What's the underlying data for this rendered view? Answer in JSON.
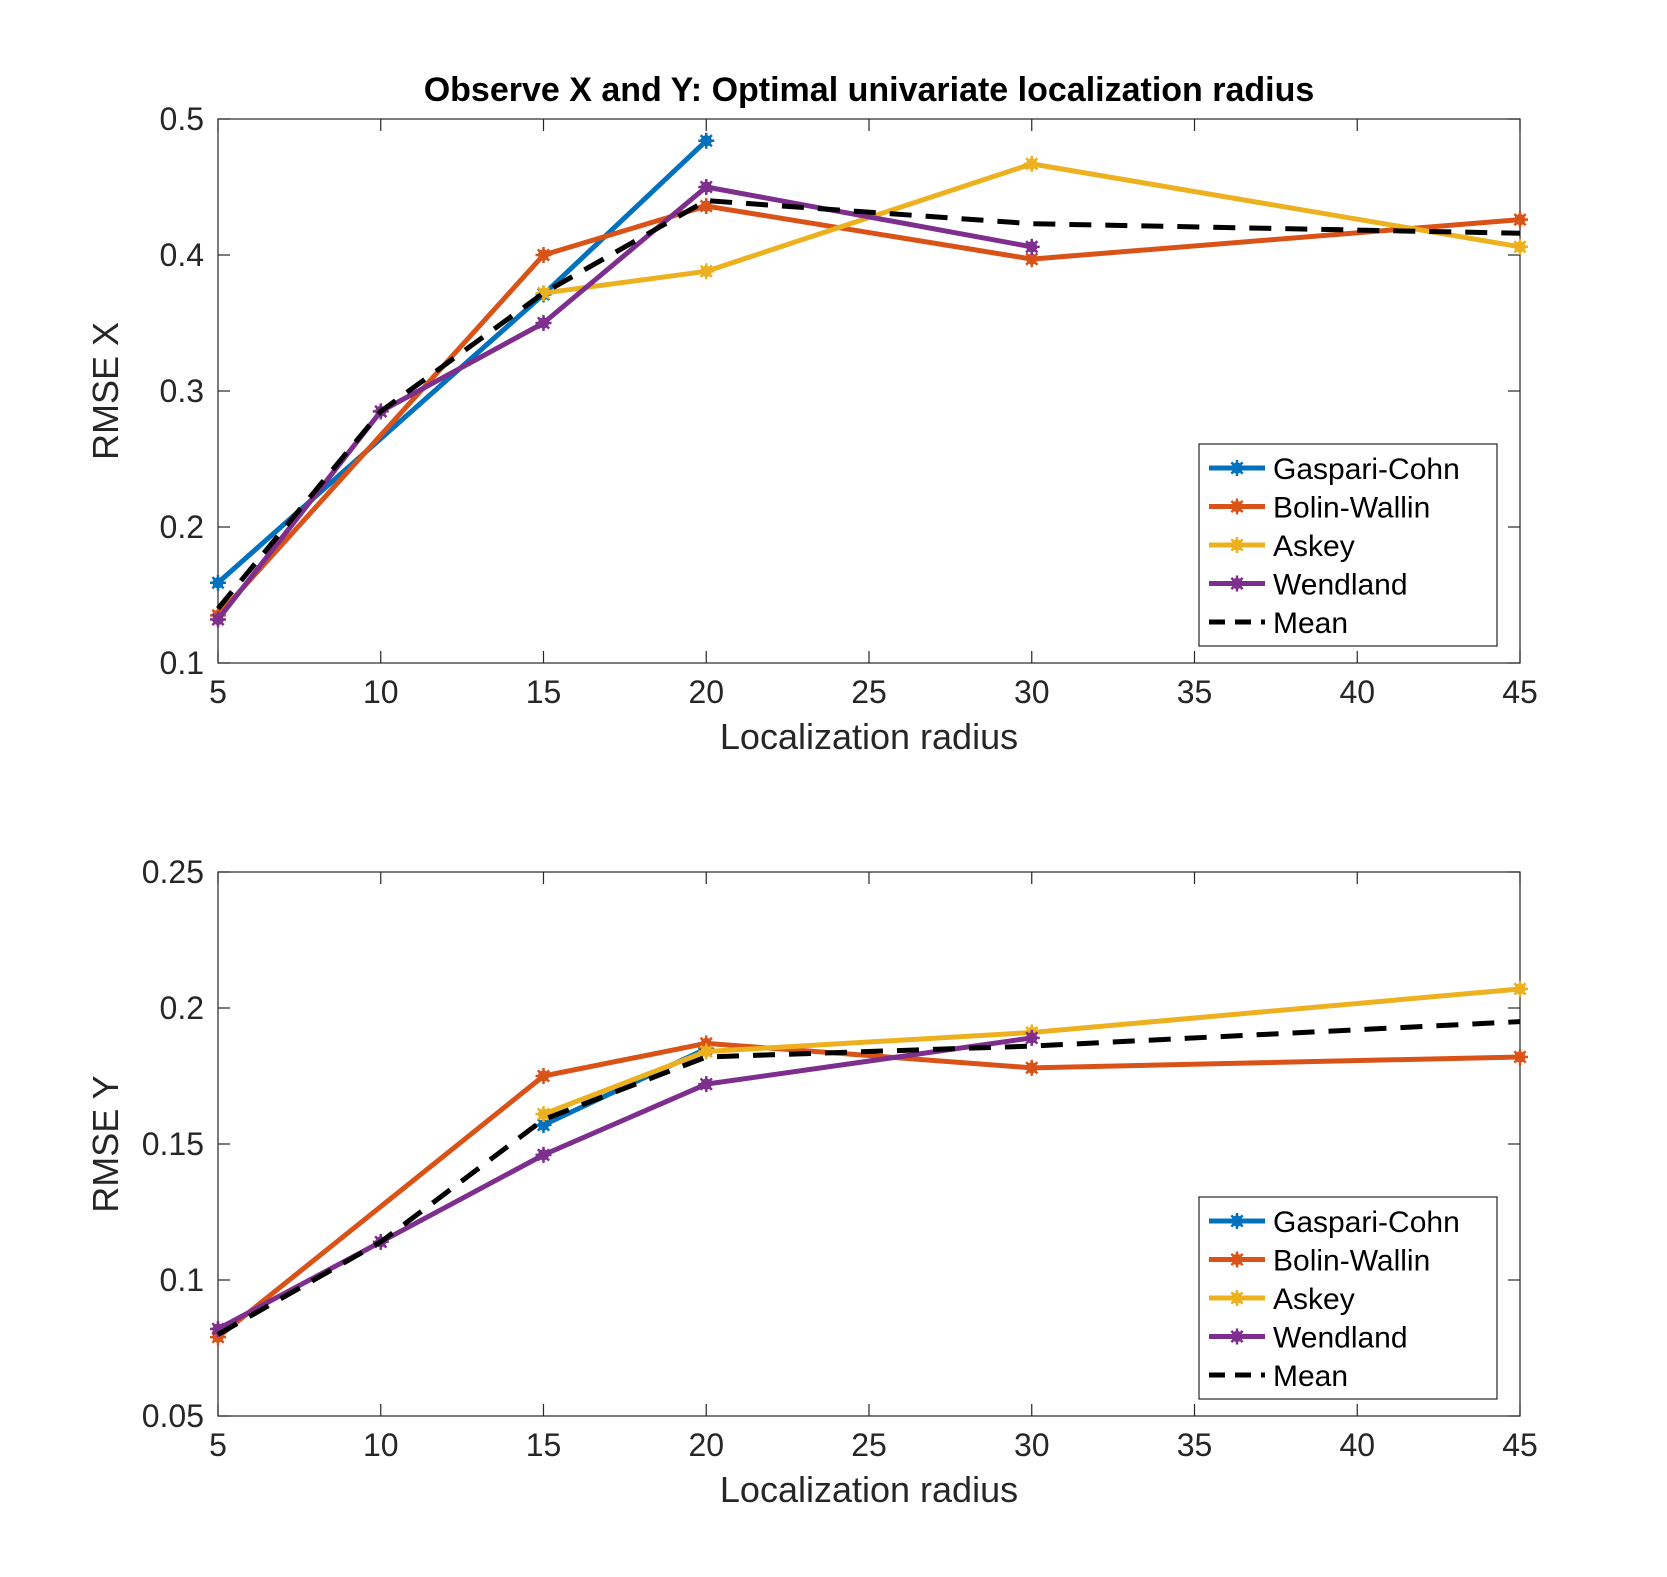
{
  "chart_data": [
    {
      "type": "line",
      "title": "Observe X and Y: Optimal univariate localization radius",
      "xlabel": "Localization radius",
      "ylabel": "RMSE X",
      "xlim": [
        5,
        45
      ],
      "ylim": [
        0.1,
        0.5
      ],
      "xticks": [
        "5",
        "10",
        "15",
        "20",
        "25",
        "30",
        "35",
        "40",
        "45"
      ],
      "yticks": [
        "0.1",
        "0.2",
        "0.3",
        "0.4",
        "0.5"
      ],
      "grid": false,
      "legend_position": "bottom-right",
      "series": [
        {
          "name": "Gaspari-Cohn",
          "color": "#0072BD",
          "line": "solid",
          "marker": "asterisk",
          "points": [
            [
              5,
              0.159
            ],
            [
              15,
              0.371
            ],
            [
              20,
              0.484
            ]
          ]
        },
        {
          "name": "Bolin-Wallin",
          "color": "#D95319",
          "line": "solid",
          "marker": "asterisk",
          "points": [
            [
              5,
              0.135
            ],
            [
              15,
              0.4
            ],
            [
              20,
              0.436
            ],
            [
              30,
              0.397
            ],
            [
              45,
              0.426
            ]
          ]
        },
        {
          "name": "Askey",
          "color": "#EDB120",
          "line": "solid",
          "marker": "asterisk",
          "points": [
            [
              15,
              0.372
            ],
            [
              20,
              0.388
            ],
            [
              30,
              0.467
            ],
            [
              45,
              0.406
            ]
          ]
        },
        {
          "name": "Wendland",
          "color": "#7E2F8E",
          "line": "solid",
          "marker": "asterisk",
          "points": [
            [
              5,
              0.132
            ],
            [
              10,
              0.285
            ],
            [
              15,
              0.35
            ],
            [
              20,
              0.45
            ],
            [
              30,
              0.406
            ]
          ]
        },
        {
          "name": "Mean",
          "color": "#000000",
          "line": "dashed",
          "marker": "none",
          "points": [
            [
              5,
              0.14
            ],
            [
              10,
              0.285
            ],
            [
              15,
              0.372
            ],
            [
              20,
              0.44
            ],
            [
              30,
              0.423
            ],
            [
              45,
              0.416
            ]
          ]
        }
      ]
    },
    {
      "type": "line",
      "title": "",
      "xlabel": "Localization radius",
      "ylabel": "RMSE Y",
      "xlim": [
        5,
        45
      ],
      "ylim": [
        0.05,
        0.25
      ],
      "xticks": [
        "5",
        "10",
        "15",
        "20",
        "25",
        "30",
        "35",
        "40",
        "45"
      ],
      "yticks": [
        "0.05",
        "0.1",
        "0.15",
        "0.2",
        "0.25"
      ],
      "grid": false,
      "legend_position": "bottom-right",
      "series": [
        {
          "name": "Gaspari-Cohn",
          "color": "#0072BD",
          "line": "solid",
          "marker": "asterisk",
          "points": [
            [
              15,
              0.157
            ],
            [
              20,
              0.185
            ]
          ]
        },
        {
          "name": "Bolin-Wallin",
          "color": "#D95319",
          "line": "solid",
          "marker": "asterisk",
          "points": [
            [
              5,
              0.079
            ],
            [
              15,
              0.175
            ],
            [
              20,
              0.187
            ],
            [
              30,
              0.178
            ],
            [
              45,
              0.182
            ]
          ]
        },
        {
          "name": "Askey",
          "color": "#EDB120",
          "line": "solid",
          "marker": "asterisk",
          "points": [
            [
              15,
              0.161
            ],
            [
              20,
              0.184
            ],
            [
              30,
              0.191
            ],
            [
              45,
              0.207
            ]
          ]
        },
        {
          "name": "Wendland",
          "color": "#7E2F8E",
          "line": "solid",
          "marker": "asterisk",
          "points": [
            [
              5,
              0.082
            ],
            [
              10,
              0.114
            ],
            [
              15,
              0.146
            ],
            [
              20,
              0.172
            ],
            [
              30,
              0.189
            ]
          ]
        },
        {
          "name": "Mean",
          "color": "#000000",
          "line": "dashed",
          "marker": "none",
          "points": [
            [
              5,
              0.08
            ],
            [
              10,
              0.114
            ],
            [
              15,
              0.159
            ],
            [
              20,
              0.182
            ],
            [
              30,
              0.186
            ],
            [
              45,
              0.195
            ]
          ]
        }
      ]
    }
  ]
}
